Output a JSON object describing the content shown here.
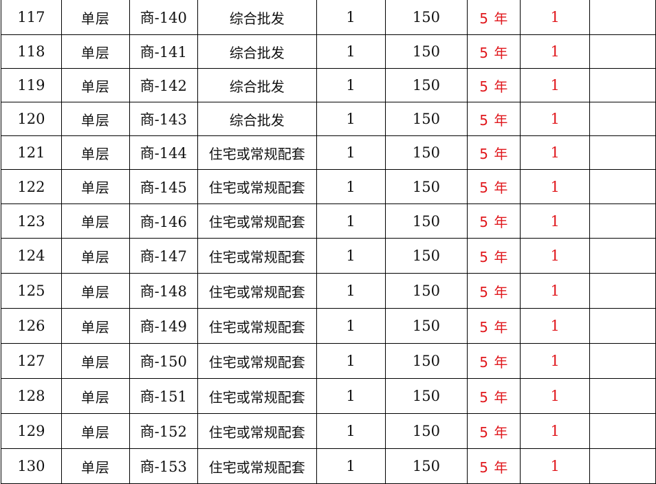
{
  "accent_color": "#e0161b",
  "rows": [
    {
      "no": "117",
      "type": "单层",
      "code": "商-140",
      "use": "综合批发",
      "qty": "1",
      "area": "150",
      "term": "5 年",
      "count": "1",
      "note": ""
    },
    {
      "no": "118",
      "type": "单层",
      "code": "商-141",
      "use": "综合批发",
      "qty": "1",
      "area": "150",
      "term": "5 年",
      "count": "1",
      "note": ""
    },
    {
      "no": "119",
      "type": "单层",
      "code": "商-142",
      "use": "综合批发",
      "qty": "1",
      "area": "150",
      "term": "5 年",
      "count": "1",
      "note": ""
    },
    {
      "no": "120",
      "type": "单层",
      "code": "商-143",
      "use": "综合批发",
      "qty": "1",
      "area": "150",
      "term": "5 年",
      "count": "1",
      "note": ""
    },
    {
      "no": "121",
      "type": "单层",
      "code": "商-144",
      "use": "住宅或常规配套",
      "qty": "1",
      "area": "150",
      "term": "5 年",
      "count": "1",
      "note": ""
    },
    {
      "no": "122",
      "type": "单层",
      "code": "商-145",
      "use": "住宅或常规配套",
      "qty": "1",
      "area": "150",
      "term": "5 年",
      "count": "1",
      "note": ""
    },
    {
      "no": "123",
      "type": "单层",
      "code": "商-146",
      "use": "住宅或常规配套",
      "qty": "1",
      "area": "150",
      "term": "5 年",
      "count": "1",
      "note": ""
    },
    {
      "no": "124",
      "type": "单层",
      "code": "商-147",
      "use": "住宅或常规配套",
      "qty": "1",
      "area": "150",
      "term": "5 年",
      "count": "1",
      "note": ""
    },
    {
      "no": "125",
      "type": "单层",
      "code": "商-148",
      "use": "住宅或常规配套",
      "qty": "1",
      "area": "150",
      "term": "5 年",
      "count": "1",
      "note": ""
    },
    {
      "no": "126",
      "type": "单层",
      "code": "商-149",
      "use": "住宅或常规配套",
      "qty": "1",
      "area": "150",
      "term": "5 年",
      "count": "1",
      "note": ""
    },
    {
      "no": "127",
      "type": "单层",
      "code": "商-150",
      "use": "住宅或常规配套",
      "qty": "1",
      "area": "150",
      "term": "5 年",
      "count": "1",
      "note": ""
    },
    {
      "no": "128",
      "type": "单层",
      "code": "商-151",
      "use": "住宅或常规配套",
      "qty": "1",
      "area": "150",
      "term": "5 年",
      "count": "1",
      "note": ""
    },
    {
      "no": "129",
      "type": "单层",
      "code": "商-152",
      "use": "住宅或常规配套",
      "qty": "1",
      "area": "150",
      "term": "5 年",
      "count": "1",
      "note": ""
    },
    {
      "no": "130",
      "type": "单层",
      "code": "商-153",
      "use": "住宅或常规配套",
      "qty": "1",
      "area": "150",
      "term": "5 年",
      "count": "1",
      "note": ""
    }
  ]
}
